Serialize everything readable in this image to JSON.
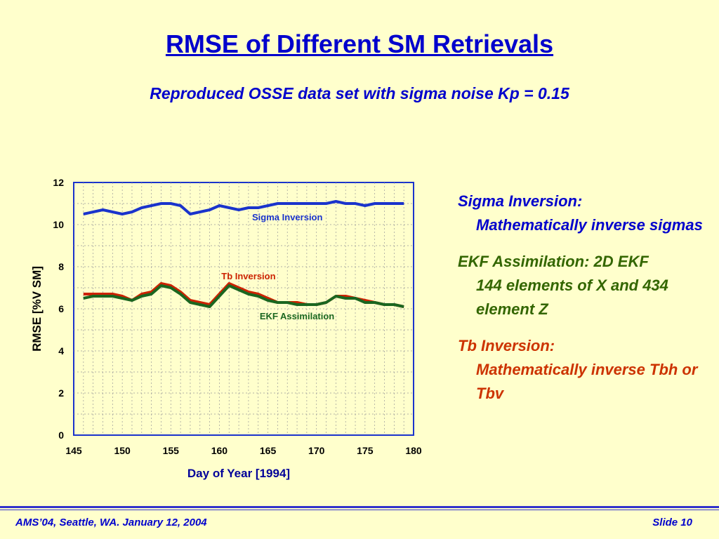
{
  "slide": {
    "title": "RMSE of Different SM Retrievals",
    "subtitle": "Reproduced OSSE data set with sigma noise Kp = 0.15",
    "footer_left": "AMS’04, Seattle, WA. January 12, 2004",
    "footer_right": "Slide 10"
  },
  "notes": [
    {
      "heading": "Sigma Inversion:",
      "body": "Mathematically inverse sigmas",
      "color": "#0000cc"
    },
    {
      "heading": "EKF Assimilation: 2D EKF",
      "body": "144 elements of X and 434 element Z",
      "color": "#336600"
    },
    {
      "heading": "Tb Inversion:",
      "body": "Mathematically inverse Tbh or Tbv",
      "color": "#cc3300"
    }
  ],
  "chart_data": {
    "type": "line",
    "title": "",
    "xlabel": "Day of Year [1994]",
    "ylabel": "RMSE [%V SM]",
    "xlim": [
      145,
      180
    ],
    "ylim": [
      0,
      12
    ],
    "xticks": [
      145,
      150,
      155,
      160,
      165,
      170,
      175,
      180
    ],
    "yticks": [
      0,
      2,
      4,
      6,
      8,
      10,
      12
    ],
    "grid": true,
    "x": [
      146,
      147,
      148,
      149,
      150,
      151,
      152,
      153,
      154,
      155,
      156,
      157,
      158,
      159,
      160,
      161,
      162,
      163,
      164,
      165,
      166,
      167,
      168,
      169,
      170,
      171,
      172,
      173,
      174,
      175,
      176,
      177,
      178,
      179
    ],
    "series": [
      {
        "name": "Sigma Inversion",
        "color": "#1a33cc",
        "values": [
          10.5,
          10.6,
          10.7,
          10.6,
          10.5,
          10.6,
          10.8,
          10.9,
          11.0,
          11.0,
          10.9,
          10.5,
          10.6,
          10.7,
          10.9,
          10.8,
          10.7,
          10.8,
          10.8,
          10.9,
          11.0,
          11.0,
          11.0,
          11.0,
          11.0,
          11.0,
          11.1,
          11.0,
          11.0,
          10.9,
          11.0,
          11.0,
          11.0,
          11.0
        ]
      },
      {
        "name": "Tb Inversion",
        "color": "#cc2200",
        "values": [
          6.7,
          6.7,
          6.7,
          6.7,
          6.6,
          6.4,
          6.7,
          6.8,
          7.2,
          7.1,
          6.8,
          6.4,
          6.3,
          6.2,
          6.7,
          7.2,
          7.0,
          6.8,
          6.7,
          6.5,
          6.3,
          6.3,
          6.3,
          6.2,
          6.2,
          6.3,
          6.6,
          6.6,
          6.5,
          6.4,
          6.3,
          6.2,
          6.2,
          6.1
        ]
      },
      {
        "name": "EKF Assimilation",
        "color": "#1a6620",
        "values": [
          6.5,
          6.6,
          6.6,
          6.6,
          6.5,
          6.4,
          6.6,
          6.7,
          7.1,
          7.0,
          6.7,
          6.3,
          6.2,
          6.1,
          6.6,
          7.1,
          6.9,
          6.7,
          6.6,
          6.4,
          6.3,
          6.3,
          6.2,
          6.2,
          6.2,
          6.3,
          6.6,
          6.5,
          6.5,
          6.3,
          6.3,
          6.2,
          6.2,
          6.1
        ]
      }
    ],
    "series_label_positions": [
      {
        "name": "Sigma Inversion",
        "x": 167,
        "y": 10.2
      },
      {
        "name": "Tb Inversion",
        "x": 163,
        "y": 7.4
      },
      {
        "name": "EKF Assimilation",
        "x": 168,
        "y": 5.5
      }
    ]
  }
}
